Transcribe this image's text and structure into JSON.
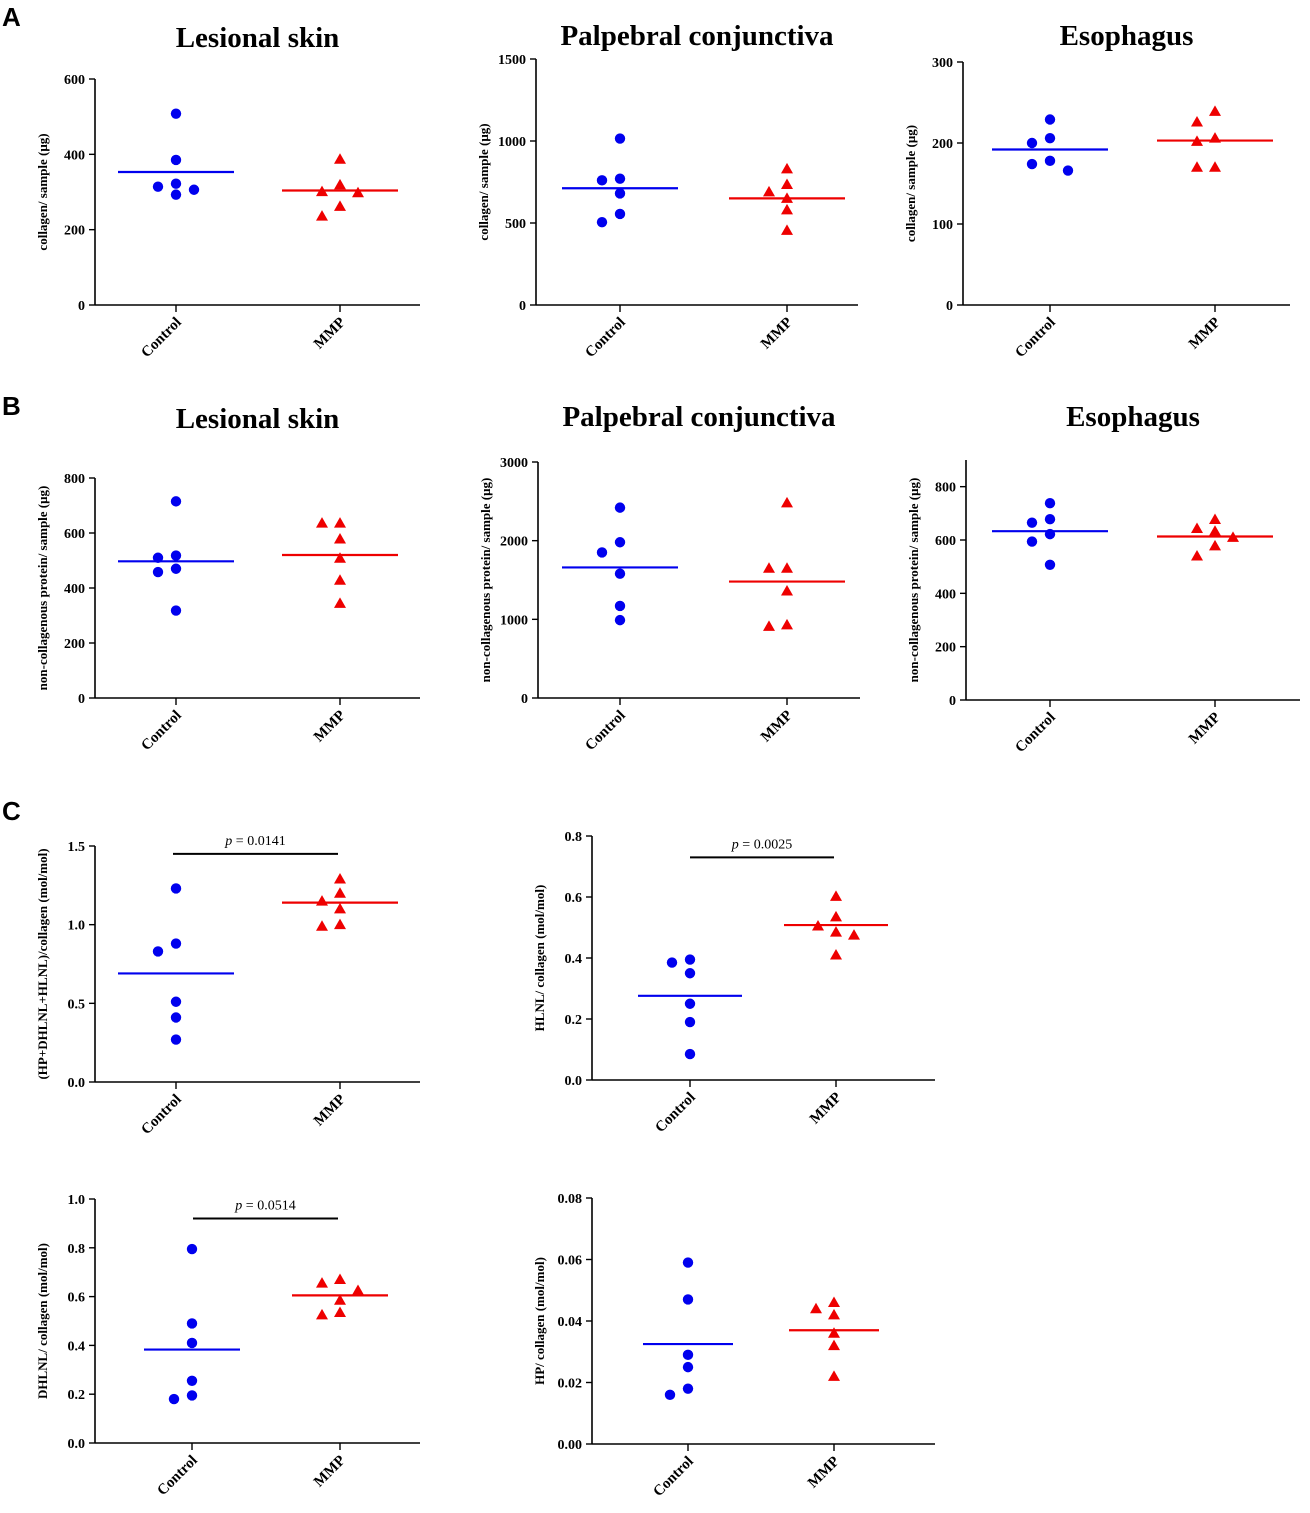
{
  "panels": [
    {
      "label": "A"
    },
    {
      "label": "B"
    },
    {
      "label": "C"
    }
  ],
  "chart_data": [
    {
      "type": "scatter",
      "panel": "A",
      "title": "Lesional skin",
      "ylabel": "collagen/ sample (μg)",
      "xlabel": "",
      "categories": [
        "Control",
        "MMP"
      ],
      "ylim": [
        0,
        600
      ],
      "yticks": [
        0,
        200,
        400,
        600
      ],
      "yticklabels": [
        "0",
        "200",
        "400",
        "600"
      ],
      "series": [
        {
          "name": "Control",
          "color": "#0000ee",
          "marker": "circle",
          "mean": 353,
          "values": [
            508,
            385,
            322,
            314,
            306,
            293
          ]
        },
        {
          "name": "MMP",
          "color": "#ee0000",
          "marker": "triangle",
          "mean": 304,
          "values": [
            387,
            319,
            301,
            298,
            262,
            236
          ]
        }
      ]
    },
    {
      "type": "scatter",
      "panel": "A",
      "title": "Palpebral conjunctiva",
      "ylabel": "collagen/ sample (μg)",
      "xlabel": "",
      "categories": [
        "Control",
        "MMP"
      ],
      "ylim": [
        0,
        1500
      ],
      "yticks": [
        0,
        500,
        1000,
        1500
      ],
      "yticklabels": [
        "0",
        "500",
        "1000",
        "1500"
      ],
      "series": [
        {
          "name": "Control",
          "color": "#0000ee",
          "marker": "circle",
          "mean": 712,
          "values": [
            1015,
            770,
            760,
            680,
            555,
            505
          ]
        },
        {
          "name": "MMP",
          "color": "#ee0000",
          "marker": "triangle",
          "mean": 650,
          "values": [
            830,
            735,
            690,
            650,
            580,
            455
          ]
        }
      ]
    },
    {
      "type": "scatter",
      "panel": "A",
      "title": "Esophagus",
      "ylabel": "collagen/ sample (μg)",
      "xlabel": "",
      "categories": [
        "Control",
        "MMP"
      ],
      "ylim": [
        0,
        300
      ],
      "yticks": [
        0,
        100,
        200,
        300
      ],
      "yticklabels": [
        "0",
        "100",
        "200",
        "300"
      ],
      "series": [
        {
          "name": "Control",
          "color": "#0000ee",
          "marker": "circle",
          "mean": 192,
          "values": [
            229,
            206,
            200,
            178,
            174,
            166
          ]
        },
        {
          "name": "MMP",
          "color": "#ee0000",
          "marker": "triangle",
          "mean": 203,
          "values": [
            239,
            226,
            206,
            202,
            170,
            170
          ]
        }
      ]
    },
    {
      "type": "scatter",
      "panel": "B",
      "title": "Lesional skin",
      "ylabel": "non-collagenous protein/ sample (μg)",
      "xlabel": "",
      "categories": [
        "Control",
        "MMP"
      ],
      "ylim": [
        0,
        800
      ],
      "yticks": [
        0,
        200,
        400,
        600,
        800
      ],
      "yticklabels": [
        "0",
        "200",
        "400",
        "600",
        "800"
      ],
      "series": [
        {
          "name": "Control",
          "color": "#0000ee",
          "marker": "circle",
          "mean": 497,
          "values": [
            715,
            518,
            510,
            470,
            458,
            318
          ]
        },
        {
          "name": "MMP",
          "color": "#ee0000",
          "marker": "triangle",
          "mean": 520,
          "values": [
            636,
            636,
            578,
            508,
            428,
            344
          ]
        }
      ]
    },
    {
      "type": "scatter",
      "panel": "B",
      "title": "Palpebral conjunctiva",
      "ylabel": "non-collagenous protein/ sample (μg)",
      "xlabel": "",
      "categories": [
        "Control",
        "MMP"
      ],
      "ylim": [
        0,
        3000
      ],
      "yticks": [
        0,
        1000,
        2000,
        3000
      ],
      "yticklabels": [
        "0",
        "1000",
        "2000",
        "3000"
      ],
      "series": [
        {
          "name": "Control",
          "color": "#0000ee",
          "marker": "circle",
          "mean": 1660,
          "values": [
            2420,
            1980,
            1850,
            1580,
            1170,
            990
          ]
        },
        {
          "name": "MMP",
          "color": "#ee0000",
          "marker": "triangle",
          "mean": 1480,
          "values": [
            2480,
            1650,
            1650,
            1360,
            930,
            910
          ]
        }
      ]
    },
    {
      "type": "scatter",
      "panel": "B",
      "title": "Esophagus",
      "ylabel": "non-collagenous protein/ sample (μg)",
      "xlabel": "",
      "categories": [
        "Control",
        "MMP"
      ],
      "ylim": [
        0,
        900
      ],
      "yticks": [
        0,
        200,
        400,
        600,
        800
      ],
      "yticklabels": [
        "0",
        "200",
        "400",
        "600",
        "800"
      ],
      "series": [
        {
          "name": "Control",
          "color": "#0000ee",
          "marker": "circle",
          "mean": 633,
          "values": [
            738,
            678,
            665,
            622,
            594,
            507
          ]
        },
        {
          "name": "MMP",
          "color": "#ee0000",
          "marker": "triangle",
          "mean": 613,
          "values": [
            677,
            643,
            633,
            610,
            578,
            540
          ]
        }
      ]
    },
    {
      "type": "scatter",
      "panel": "C",
      "title": "",
      "ylabel": "(HP+DHLNL+HLNL)/collagen (mol/mol)",
      "xlabel": "",
      "categories": [
        "Control",
        "MMP"
      ],
      "ylim": [
        0,
        1.5
      ],
      "yticks": [
        0,
        0.5,
        1.0,
        1.5
      ],
      "yticklabels": [
        "0.0",
        "0.5",
        "1.0",
        "1.5"
      ],
      "pvalue": {
        "label": "p",
        "text": " = 0.0141",
        "y": 1.45
      },
      "series": [
        {
          "name": "Control",
          "color": "#0000ee",
          "marker": "circle",
          "mean": 0.69,
          "values": [
            1.23,
            0.88,
            0.83,
            0.51,
            0.41,
            0.27
          ]
        },
        {
          "name": "MMP",
          "color": "#ee0000",
          "marker": "triangle",
          "mean": 1.14,
          "values": [
            1.29,
            1.2,
            1.15,
            1.1,
            1.0,
            0.99
          ]
        }
      ]
    },
    {
      "type": "scatter",
      "panel": "C",
      "title": "",
      "ylabel": "HLNL/ collagen (mol/mol)",
      "xlabel": "",
      "categories": [
        "Control",
        "MMP"
      ],
      "ylim": [
        0,
        0.8
      ],
      "yticks": [
        0,
        0.2,
        0.4,
        0.6,
        0.8
      ],
      "yticklabels": [
        "0.0",
        "0.2",
        "0.4",
        "0.6",
        "0.8"
      ],
      "pvalue": {
        "label": "p",
        "text": " = 0.0025",
        "y": 0.73
      },
      "series": [
        {
          "name": "Control",
          "color": "#0000ee",
          "marker": "circle",
          "mean": 0.276,
          "values": [
            0.395,
            0.385,
            0.35,
            0.25,
            0.19,
            0.085
          ]
        },
        {
          "name": "MMP",
          "color": "#ee0000",
          "marker": "triangle",
          "mean": 0.508,
          "values": [
            0.602,
            0.535,
            0.505,
            0.485,
            0.475,
            0.41
          ]
        }
      ]
    },
    {
      "type": "scatter",
      "panel": "C",
      "title": "",
      "ylabel": "DHLNL/ collagen (mol/mol)",
      "xlabel": "",
      "categories": [
        "Control",
        "MMP"
      ],
      "ylim": [
        0,
        1.0
      ],
      "yticks": [
        0,
        0.2,
        0.4,
        0.6,
        0.8,
        1.0
      ],
      "yticklabels": [
        "0.0",
        "0.2",
        "0.4",
        "0.6",
        "0.8",
        "1.0"
      ],
      "pvalue": {
        "label": "p",
        "text": " = 0.0514",
        "y": 0.92
      },
      "series": [
        {
          "name": "Control",
          "color": "#0000ee",
          "marker": "circle",
          "mean": 0.383,
          "values": [
            0.795,
            0.49,
            0.41,
            0.255,
            0.195,
            0.18
          ]
        },
        {
          "name": "MMP",
          "color": "#ee0000",
          "marker": "triangle",
          "mean": 0.605,
          "values": [
            0.67,
            0.655,
            0.625,
            0.585,
            0.535,
            0.525
          ]
        }
      ]
    },
    {
      "type": "scatter",
      "panel": "C",
      "title": "",
      "ylabel": "HP/ collagen (mol/mol)",
      "xlabel": "",
      "categories": [
        "Control",
        "MMP"
      ],
      "ylim": [
        0,
        0.08
      ],
      "yticks": [
        0,
        0.02,
        0.04,
        0.06,
        0.08
      ],
      "yticklabels": [
        "0.00",
        "0.02",
        "0.04",
        "0.06",
        "0.08"
      ],
      "series": [
        {
          "name": "Control",
          "color": "#0000ee",
          "marker": "circle",
          "mean": 0.0325,
          "values": [
            0.059,
            0.047,
            0.029,
            0.025,
            0.018,
            0.016
          ]
        },
        {
          "name": "MMP",
          "color": "#ee0000",
          "marker": "triangle",
          "mean": 0.037,
          "values": [
            0.046,
            0.044,
            0.042,
            0.036,
            0.032,
            0.022
          ]
        }
      ]
    }
  ]
}
